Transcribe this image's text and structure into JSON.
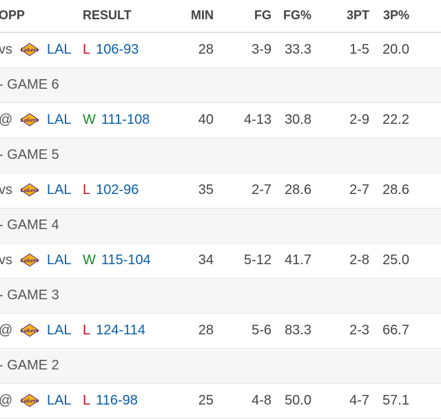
{
  "header": {
    "opp": "OPP",
    "result": "RESULT",
    "min": "MIN",
    "fg": "FG",
    "fg_pct": "FG%",
    "three_pt": "3PT",
    "three_pct": "3P%"
  },
  "rows": [
    {
      "opp": "vs",
      "team": "LAL",
      "wl": "L",
      "score": "106-93",
      "min": "28",
      "fg": "3-9",
      "fg_pct": "33.3",
      "three_pt": "1-5",
      "three_pct": "20.0",
      "separator": "- GAME 6"
    },
    {
      "opp": "@",
      "team": "LAL",
      "wl": "W",
      "score": "111-108",
      "min": "40",
      "fg": "4-13",
      "fg_pct": "30.8",
      "three_pt": "2-9",
      "three_pct": "22.2",
      "separator": "- GAME 5"
    },
    {
      "opp": "vs",
      "team": "LAL",
      "wl": "L",
      "score": "102-96",
      "min": "35",
      "fg": "2-7",
      "fg_pct": "28.6",
      "three_pt": "2-7",
      "three_pct": "28.6",
      "separator": "- GAME 4"
    },
    {
      "opp": "vs",
      "team": "LAL",
      "wl": "W",
      "score": "115-104",
      "min": "34",
      "fg": "5-12",
      "fg_pct": "41.7",
      "three_pt": "2-8",
      "three_pct": "25.0",
      "separator": "- GAME 3"
    },
    {
      "opp": "@",
      "team": "LAL",
      "wl": "L",
      "score": "124-114",
      "min": "28",
      "fg": "5-6",
      "fg_pct": "83.3",
      "three_pt": "2-3",
      "three_pct": "66.7",
      "separator": "- GAME 2"
    },
    {
      "opp": "@",
      "team": "LAL",
      "wl": "L",
      "score": "116-98",
      "min": "25",
      "fg": "4-8",
      "fg_pct": "50.0",
      "three_pt": "4-7",
      "three_pct": "57.1",
      "separator": ""
    }
  ],
  "colors": {
    "win": "#1a8a2a",
    "loss": "#c0151d",
    "link": "#0b5ea8"
  },
  "logo": {
    "icon": "lakers-logo-icon",
    "text": "Lakers"
  }
}
